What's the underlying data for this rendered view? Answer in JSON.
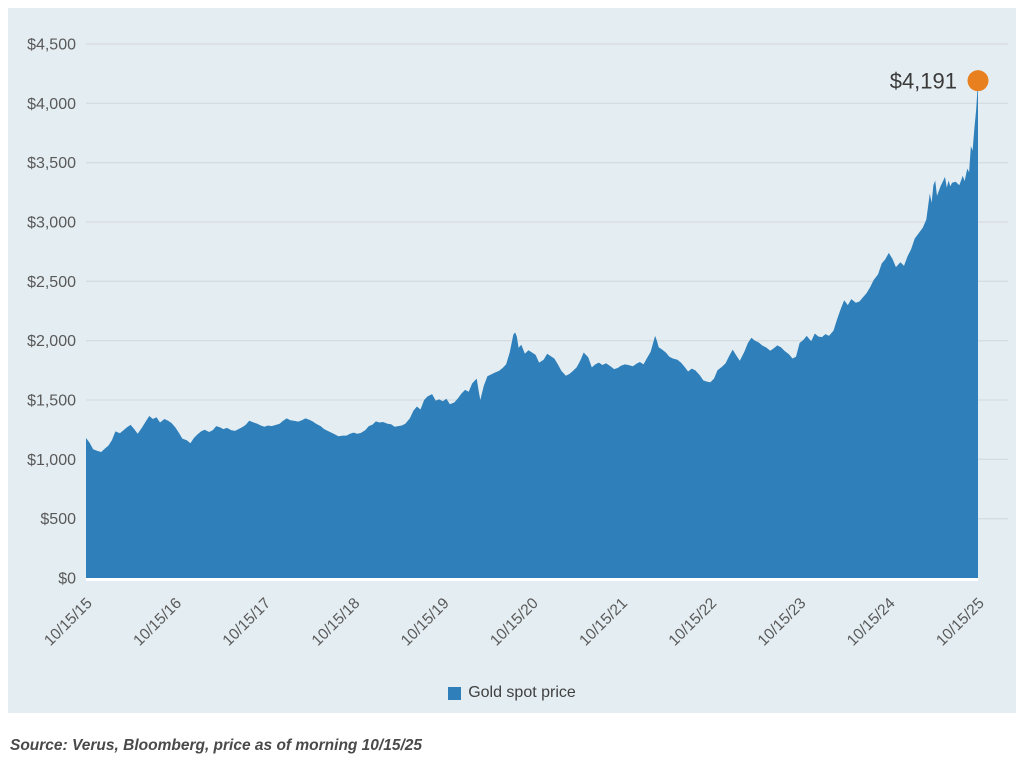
{
  "chart_data": {
    "type": "area",
    "title": "",
    "xlabel": "",
    "ylabel": "",
    "ylim": [
      0,
      4500
    ],
    "x_range_years": [
      0,
      10
    ],
    "grid": true,
    "legend_position": "bottom",
    "x_ticks": [
      "10/15/15",
      "10/15/16",
      "10/15/17",
      "10/15/18",
      "10/15/19",
      "10/15/20",
      "10/15/21",
      "10/15/22",
      "10/15/23",
      "10/15/24",
      "10/15/25"
    ],
    "y_ticks": [
      {
        "label": "$0",
        "value": 0
      },
      {
        "label": "$500",
        "value": 500
      },
      {
        "label": "$1,000",
        "value": 1000
      },
      {
        "label": "$1,500",
        "value": 1500
      },
      {
        "label": "$2,000",
        "value": 2000
      },
      {
        "label": "$2,500",
        "value": 2500
      },
      {
        "label": "$3,000",
        "value": 3000
      },
      {
        "label": "$3,500",
        "value": 3500
      },
      {
        "label": "$4,000",
        "value": 4000
      },
      {
        "label": "$4,500",
        "value": 4500
      }
    ],
    "annotation": {
      "text": "$4,191",
      "value": 4191
    },
    "series": [
      {
        "name": "Gold spot price",
        "points": [
          [
            0.0,
            1180
          ],
          [
            0.04,
            1140
          ],
          [
            0.08,
            1085
          ],
          [
            0.13,
            1070
          ],
          [
            0.17,
            1062
          ],
          [
            0.21,
            1090
          ],
          [
            0.25,
            1115
          ],
          [
            0.29,
            1160
          ],
          [
            0.33,
            1235
          ],
          [
            0.38,
            1220
          ],
          [
            0.42,
            1245
          ],
          [
            0.46,
            1270
          ],
          [
            0.5,
            1290
          ],
          [
            0.54,
            1255
          ],
          [
            0.58,
            1215
          ],
          [
            0.63,
            1270
          ],
          [
            0.67,
            1320
          ],
          [
            0.71,
            1365
          ],
          [
            0.75,
            1340
          ],
          [
            0.79,
            1355
          ],
          [
            0.83,
            1310
          ],
          [
            0.88,
            1340
          ],
          [
            0.92,
            1325
          ],
          [
            0.96,
            1305
          ],
          [
            1.0,
            1270
          ],
          [
            1.04,
            1225
          ],
          [
            1.08,
            1175
          ],
          [
            1.13,
            1160
          ],
          [
            1.17,
            1135
          ],
          [
            1.21,
            1180
          ],
          [
            1.25,
            1210
          ],
          [
            1.29,
            1235
          ],
          [
            1.33,
            1250
          ],
          [
            1.38,
            1230
          ],
          [
            1.42,
            1245
          ],
          [
            1.46,
            1280
          ],
          [
            1.5,
            1270
          ],
          [
            1.54,
            1255
          ],
          [
            1.58,
            1265
          ],
          [
            1.63,
            1245
          ],
          [
            1.67,
            1240
          ],
          [
            1.71,
            1255
          ],
          [
            1.75,
            1270
          ],
          [
            1.79,
            1290
          ],
          [
            1.83,
            1325
          ],
          [
            1.88,
            1310
          ],
          [
            1.92,
            1300
          ],
          [
            1.96,
            1285
          ],
          [
            2.0,
            1275
          ],
          [
            2.04,
            1285
          ],
          [
            2.08,
            1280
          ],
          [
            2.13,
            1290
          ],
          [
            2.17,
            1300
          ],
          [
            2.21,
            1325
          ],
          [
            2.25,
            1345
          ],
          [
            2.29,
            1330
          ],
          [
            2.33,
            1325
          ],
          [
            2.38,
            1318
          ],
          [
            2.42,
            1330
          ],
          [
            2.46,
            1345
          ],
          [
            2.5,
            1335
          ],
          [
            2.54,
            1320
          ],
          [
            2.58,
            1300
          ],
          [
            2.63,
            1280
          ],
          [
            2.67,
            1255
          ],
          [
            2.71,
            1240
          ],
          [
            2.75,
            1225
          ],
          [
            2.79,
            1210
          ],
          [
            2.83,
            1195
          ],
          [
            2.88,
            1200
          ],
          [
            2.92,
            1200
          ],
          [
            2.96,
            1215
          ],
          [
            3.0,
            1225
          ],
          [
            3.04,
            1215
          ],
          [
            3.08,
            1222
          ],
          [
            3.13,
            1245
          ],
          [
            3.17,
            1280
          ],
          [
            3.21,
            1292
          ],
          [
            3.25,
            1320
          ],
          [
            3.29,
            1310
          ],
          [
            3.33,
            1315
          ],
          [
            3.38,
            1300
          ],
          [
            3.42,
            1295
          ],
          [
            3.46,
            1275
          ],
          [
            3.5,
            1280
          ],
          [
            3.54,
            1285
          ],
          [
            3.58,
            1300
          ],
          [
            3.63,
            1345
          ],
          [
            3.67,
            1410
          ],
          [
            3.71,
            1445
          ],
          [
            3.75,
            1420
          ],
          [
            3.79,
            1500
          ],
          [
            3.83,
            1530
          ],
          [
            3.88,
            1550
          ],
          [
            3.92,
            1495
          ],
          [
            3.96,
            1505
          ],
          [
            4.0,
            1490
          ],
          [
            4.04,
            1510
          ],
          [
            4.08,
            1465
          ],
          [
            4.13,
            1480
          ],
          [
            4.17,
            1515
          ],
          [
            4.21,
            1555
          ],
          [
            4.25,
            1585
          ],
          [
            4.29,
            1570
          ],
          [
            4.33,
            1640
          ],
          [
            4.38,
            1680
          ],
          [
            4.4,
            1585
          ],
          [
            4.42,
            1500
          ],
          [
            4.46,
            1620
          ],
          [
            4.5,
            1700
          ],
          [
            4.54,
            1715
          ],
          [
            4.58,
            1730
          ],
          [
            4.63,
            1745
          ],
          [
            4.67,
            1770
          ],
          [
            4.71,
            1800
          ],
          [
            4.75,
            1900
          ],
          [
            4.79,
            2050
          ],
          [
            4.81,
            2070
          ],
          [
            4.83,
            2035
          ],
          [
            4.85,
            1940
          ],
          [
            4.88,
            1965
          ],
          [
            4.92,
            1890
          ],
          [
            4.96,
            1920
          ],
          [
            5.0,
            1900
          ],
          [
            5.04,
            1880
          ],
          [
            5.08,
            1815
          ],
          [
            5.13,
            1840
          ],
          [
            5.17,
            1890
          ],
          [
            5.21,
            1870
          ],
          [
            5.25,
            1850
          ],
          [
            5.29,
            1800
          ],
          [
            5.33,
            1745
          ],
          [
            5.38,
            1705
          ],
          [
            5.42,
            1720
          ],
          [
            5.46,
            1745
          ],
          [
            5.5,
            1775
          ],
          [
            5.54,
            1830
          ],
          [
            5.58,
            1900
          ],
          [
            5.63,
            1860
          ],
          [
            5.67,
            1775
          ],
          [
            5.71,
            1800
          ],
          [
            5.75,
            1815
          ],
          [
            5.79,
            1795
          ],
          [
            5.83,
            1810
          ],
          [
            5.88,
            1785
          ],
          [
            5.92,
            1760
          ],
          [
            5.96,
            1770
          ],
          [
            6.0,
            1790
          ],
          [
            6.04,
            1800
          ],
          [
            6.08,
            1795
          ],
          [
            6.13,
            1785
          ],
          [
            6.17,
            1805
          ],
          [
            6.21,
            1820
          ],
          [
            6.25,
            1800
          ],
          [
            6.29,
            1855
          ],
          [
            6.33,
            1905
          ],
          [
            6.38,
            2040
          ],
          [
            6.4,
            2000
          ],
          [
            6.42,
            1945
          ],
          [
            6.46,
            1925
          ],
          [
            6.5,
            1900
          ],
          [
            6.54,
            1865
          ],
          [
            6.58,
            1850
          ],
          [
            6.63,
            1840
          ],
          [
            6.67,
            1815
          ],
          [
            6.71,
            1780
          ],
          [
            6.75,
            1740
          ],
          [
            6.79,
            1765
          ],
          [
            6.83,
            1750
          ],
          [
            6.88,
            1710
          ],
          [
            6.92,
            1665
          ],
          [
            6.96,
            1655
          ],
          [
            7.0,
            1650
          ],
          [
            7.04,
            1680
          ],
          [
            7.08,
            1750
          ],
          [
            7.13,
            1780
          ],
          [
            7.17,
            1810
          ],
          [
            7.21,
            1870
          ],
          [
            7.25,
            1925
          ],
          [
            7.29,
            1875
          ],
          [
            7.33,
            1830
          ],
          [
            7.38,
            1905
          ],
          [
            7.42,
            1980
          ],
          [
            7.46,
            2025
          ],
          [
            7.5,
            2000
          ],
          [
            7.54,
            1985
          ],
          [
            7.58,
            1960
          ],
          [
            7.63,
            1940
          ],
          [
            7.67,
            1915
          ],
          [
            7.71,
            1935
          ],
          [
            7.75,
            1960
          ],
          [
            7.79,
            1945
          ],
          [
            7.83,
            1915
          ],
          [
            7.88,
            1885
          ],
          [
            7.92,
            1850
          ],
          [
            7.96,
            1865
          ],
          [
            8.0,
            1980
          ],
          [
            8.04,
            2005
          ],
          [
            8.08,
            2040
          ],
          [
            8.13,
            1995
          ],
          [
            8.17,
            2060
          ],
          [
            8.21,
            2035
          ],
          [
            8.25,
            2030
          ],
          [
            8.29,
            2055
          ],
          [
            8.33,
            2040
          ],
          [
            8.38,
            2085
          ],
          [
            8.42,
            2180
          ],
          [
            8.46,
            2265
          ],
          [
            8.5,
            2340
          ],
          [
            8.54,
            2300
          ],
          [
            8.58,
            2350
          ],
          [
            8.63,
            2320
          ],
          [
            8.67,
            2330
          ],
          [
            8.71,
            2365
          ],
          [
            8.75,
            2400
          ],
          [
            8.79,
            2450
          ],
          [
            8.83,
            2510
          ],
          [
            8.88,
            2560
          ],
          [
            8.92,
            2650
          ],
          [
            8.96,
            2685
          ],
          [
            9.0,
            2740
          ],
          [
            9.04,
            2690
          ],
          [
            9.08,
            2620
          ],
          [
            9.13,
            2660
          ],
          [
            9.17,
            2630
          ],
          [
            9.21,
            2710
          ],
          [
            9.25,
            2770
          ],
          [
            9.29,
            2860
          ],
          [
            9.33,
            2900
          ],
          [
            9.38,
            2950
          ],
          [
            9.42,
            3020
          ],
          [
            9.46,
            3240
          ],
          [
            9.48,
            3160
          ],
          [
            9.5,
            3310
          ],
          [
            9.52,
            3350
          ],
          [
            9.54,
            3220
          ],
          [
            9.58,
            3300
          ],
          [
            9.63,
            3380
          ],
          [
            9.65,
            3290
          ],
          [
            9.67,
            3350
          ],
          [
            9.69,
            3300
          ],
          [
            9.71,
            3330
          ],
          [
            9.75,
            3340
          ],
          [
            9.79,
            3310
          ],
          [
            9.83,
            3390
          ],
          [
            9.85,
            3345
          ],
          [
            9.88,
            3450
          ],
          [
            9.9,
            3420
          ],
          [
            9.92,
            3640
          ],
          [
            9.94,
            3600
          ],
          [
            9.96,
            3790
          ],
          [
            9.98,
            3950
          ],
          [
            10.0,
            4191
          ]
        ]
      }
    ]
  },
  "legend": {
    "label": "Gold spot price"
  },
  "source_note": "Source: Verus, Bloomberg, price as of morning 10/15/25",
  "colors": {
    "area": "#2e7fba",
    "marker": "#e8801f",
    "panel_background": "#e4edf1",
    "gridline": "#d6dcdf",
    "axis_label": "#595959",
    "annotation_text": "#3a3a3a",
    "legend_text": "#404040"
  }
}
